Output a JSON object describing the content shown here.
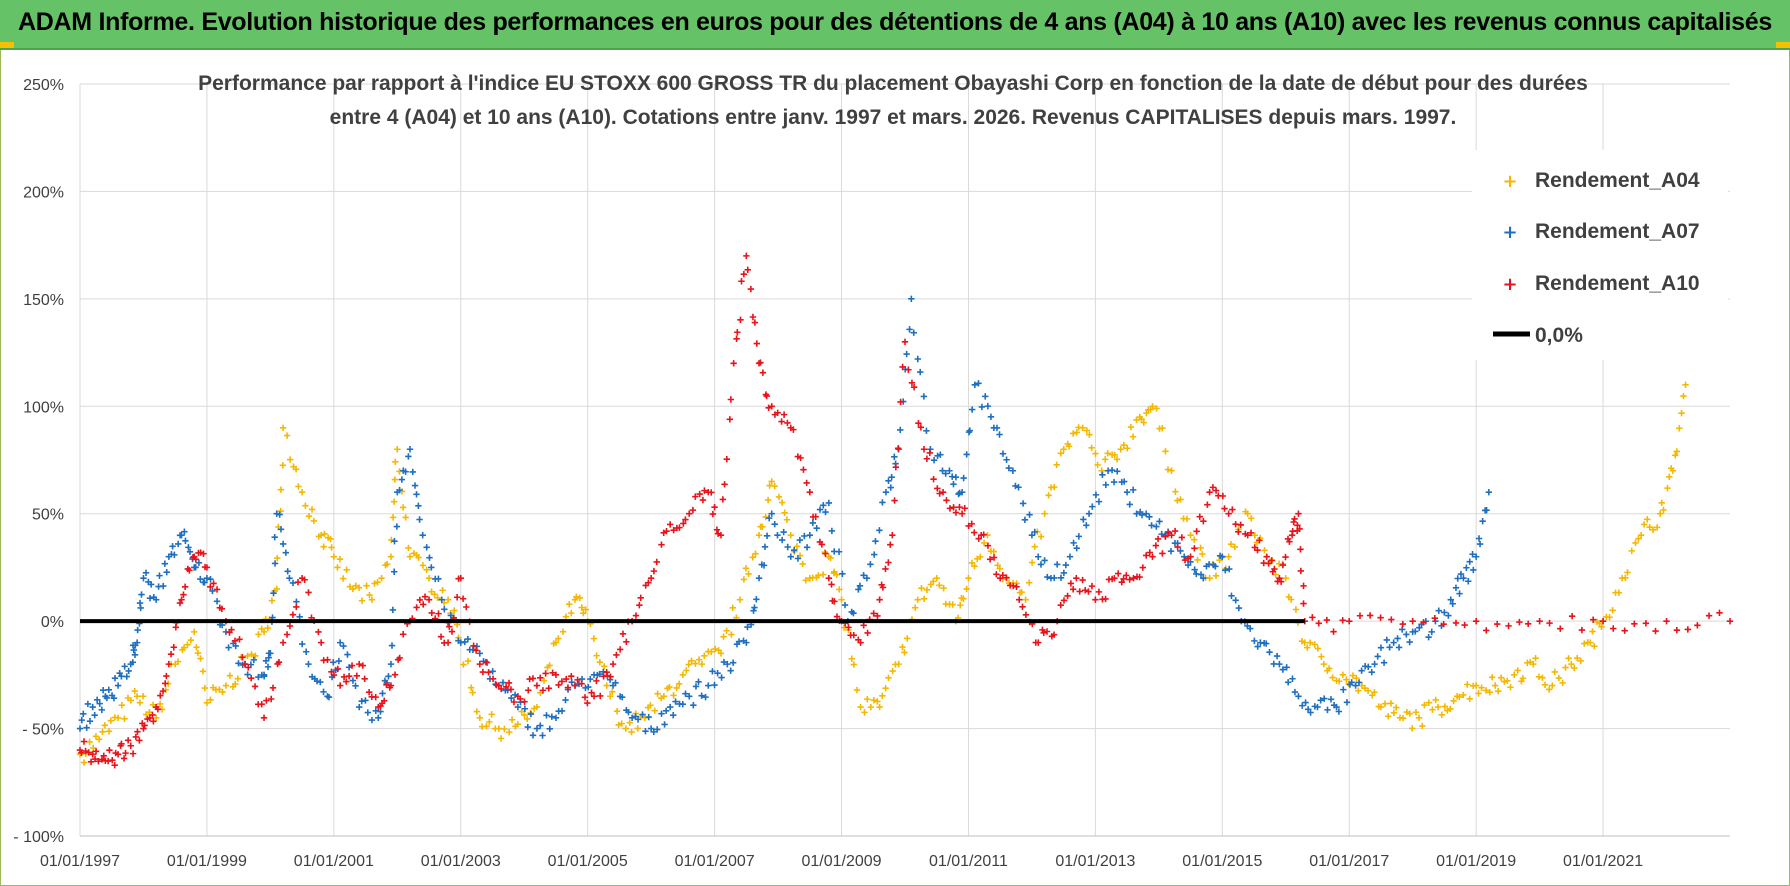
{
  "header": {
    "title": "ADAM Informe. Evolution historique des performances en euros pour des détentions de 4 ans (A04) à 10 ans (A10) avec les revenus connus capitalisés"
  },
  "colors": {
    "A04": "#f5b800",
    "A07": "#1f6fc1",
    "A10": "#e8131b",
    "zero": "#000000",
    "grid": "#d9d9d9",
    "banner": "#66c266"
  },
  "chart_data": {
    "type": "scatter",
    "title_lines": [
      "Performance par rapport à l'indice EU STOXX 600 GROSS TR  du placement Obayashi Corp en fonction de la date de début pour des durées",
      "entre 4 (A04) et 10 ans (A10).  Cotations entre janv. 1997 et mars. 2026.  Revenus CAPITALISES depuis mars. 1997."
    ],
    "xlabel": "",
    "ylabel": "",
    "x_range": [
      1997.0,
      2023.0
    ],
    "ylim": [
      -100,
      250
    ],
    "y_unit": "%",
    "y_ticks": [
      -100,
      -50,
      0,
      50,
      100,
      150,
      200,
      250
    ],
    "y_tick_labels": [
      "- 100%",
      "- 50%",
      "0%",
      "50%",
      "100%",
      "150%",
      "200%",
      "250%"
    ],
    "x_ticks": [
      1997,
      1999,
      2001,
      2003,
      2005,
      2007,
      2009,
      2011,
      2013,
      2015,
      2017,
      2019,
      2021
    ],
    "x_tick_labels": [
      "01/01/1997",
      "01/01/1999",
      "01/01/2001",
      "01/01/2003",
      "01/01/2005",
      "01/01/2007",
      "01/01/2009",
      "01/01/2011",
      "01/01/2013",
      "01/01/2015",
      "01/01/2017",
      "01/01/2019",
      "01/01/2021"
    ],
    "legend_position": "top-right",
    "series": [
      {
        "key": "A04",
        "name": "Rendement_A04",
        "marker": "+",
        "x": [
          1997.0,
          1997.3,
          1997.6,
          1997.9,
          1998.2,
          1998.5,
          1998.8,
          1999.0,
          1999.3,
          1999.6,
          1999.9,
          2000.1,
          2000.2,
          2000.5,
          2000.8,
          2001.0,
          2001.3,
          2001.6,
          2001.9,
          2002.0,
          2002.2,
          2002.5,
          2002.8,
          2003.0,
          2003.3,
          2003.6,
          2003.9,
          2004.2,
          2004.5,
          2004.8,
          2005.0,
          2005.3,
          2005.6,
          2005.9,
          2006.2,
          2006.5,
          2006.8,
          2007.1,
          2007.4,
          2007.7,
          2007.9,
          2008.2,
          2008.5,
          2008.8,
          2009.0,
          2009.3,
          2009.6,
          2009.9,
          2010.2,
          2010.5,
          2010.8,
          2011.0,
          2011.3,
          2011.6,
          2011.9,
          2012.2,
          2012.5,
          2012.8,
          2013.1,
          2013.4,
          2013.7,
          2013.9,
          2014.2,
          2014.5,
          2014.8,
          2015.1,
          2015.4,
          2015.7,
          2016.0,
          2016.3,
          2016.6,
          2016.9,
          2017.2,
          2017.5,
          2017.8,
          2018.1,
          2018.4,
          2018.7,
          2019.0,
          2019.3,
          2019.6,
          2019.9,
          2020.2,
          2020.5,
          2020.8,
          2021.0,
          2021.3,
          2021.6,
          2021.9,
          2022.1,
          2022.3
        ],
        "y": [
          -62,
          -55,
          -45,
          -35,
          -45,
          -20,
          -5,
          -38,
          -30,
          -20,
          -5,
          15,
          90,
          60,
          40,
          30,
          15,
          10,
          30,
          80,
          30,
          20,
          10,
          -10,
          -45,
          -50,
          -48,
          -40,
          -10,
          10,
          0,
          -30,
          -50,
          -45,
          -35,
          -25,
          -20,
          -15,
          10,
          40,
          65,
          40,
          20,
          30,
          10,
          -40,
          -40,
          -20,
          10,
          20,
          0,
          20,
          40,
          20,
          10,
          50,
          80,
          90,
          70,
          80,
          95,
          100,
          70,
          40,
          20,
          30,
          50,
          30,
          20,
          -10,
          -20,
          -25,
          -30,
          -40,
          -45,
          -45,
          -40,
          -35,
          -30,
          -30,
          -25,
          -20,
          -30,
          -20,
          -10,
          0,
          20,
          40,
          50,
          70,
          110
        ]
      },
      {
        "key": "A07",
        "name": "Rendement_A07",
        "marker": "+",
        "x": [
          1997.0,
          1997.2,
          1997.4,
          1997.6,
          1997.8,
          1997.9,
          1998.0,
          1998.2,
          1998.4,
          1998.6,
          1998.8,
          1999.0,
          1999.3,
          1999.6,
          1999.9,
          2000.0,
          2000.1,
          2000.3,
          2000.6,
          2000.9,
          2001.1,
          2001.4,
          2001.7,
          2001.9,
          2002.0,
          2002.2,
          2002.4,
          2002.7,
          2003.0,
          2003.3,
          2003.6,
          2003.9,
          2004.2,
          2004.5,
          2004.8,
          2005.1,
          2005.4,
          2005.7,
          2006.0,
          2006.3,
          2006.6,
          2006.9,
          2007.2,
          2007.5,
          2007.7,
          2007.9,
          2008.2,
          2008.5,
          2008.8,
          2009.1,
          2009.4,
          2009.7,
          2009.9,
          2010.1,
          2010.4,
          2010.7,
          2010.9,
          2011.1,
          2011.4,
          2011.7,
          2012.0,
          2012.3,
          2012.6,
          2012.9,
          2013.2,
          2013.5,
          2013.8,
          2014.1,
          2014.4,
          2014.7,
          2015.0,
          2015.3,
          2015.6,
          2015.9,
          2016.2,
          2016.5,
          2016.8,
          2017.1,
          2017.4,
          2017.7,
          2018.0,
          2018.3,
          2018.6,
          2018.8,
          2019.0,
          2019.2
        ],
        "y": [
          -50,
          -40,
          -35,
          -30,
          -20,
          -10,
          20,
          10,
          30,
          40,
          25,
          20,
          -5,
          -20,
          -25,
          -15,
          50,
          20,
          -20,
          -35,
          -10,
          -40,
          -45,
          -20,
          60,
          80,
          40,
          10,
          -10,
          -15,
          -30,
          -40,
          -50,
          -45,
          -30,
          -25,
          -30,
          -45,
          -50,
          -40,
          -35,
          -30,
          -20,
          -10,
          20,
          50,
          30,
          40,
          55,
          0,
          20,
          60,
          80,
          150,
          80,
          70,
          60,
          110,
          90,
          70,
          40,
          20,
          30,
          50,
          70,
          60,
          50,
          40,
          30,
          20,
          30,
          0,
          -10,
          -20,
          -35,
          -40,
          -40,
          -30,
          -20,
          -10,
          -5,
          -5,
          10,
          20,
          30,
          60
        ]
      },
      {
        "key": "A10",
        "name": "Rendement_A10",
        "marker": "+",
        "x": [
          1997.0,
          1997.2,
          1997.4,
          1997.6,
          1997.8,
          1998.0,
          1998.2,
          1998.4,
          1998.6,
          1998.8,
          1999.0,
          1999.3,
          1999.6,
          1999.9,
          2000.2,
          2000.5,
          2000.8,
          2001.1,
          2001.4,
          2001.7,
          2001.9,
          2002.2,
          2002.5,
          2002.8,
          2003.0,
          2003.3,
          2003.6,
          2003.9,
          2004.2,
          2004.5,
          2004.8,
          2005.1,
          2005.4,
          2005.7,
          2006.0,
          2006.3,
          2006.6,
          2006.9,
          2007.1,
          2007.3,
          2007.5,
          2007.7,
          2007.9,
          2008.2,
          2008.5,
          2008.8,
          2009.0,
          2009.3,
          2009.6,
          2009.8,
          2010.0,
          2010.3,
          2010.6,
          2010.9,
          2011.2,
          2011.5,
          2011.8,
          2012.1,
          2012.4,
          2012.7,
          2013.0,
          2013.3,
          2013.6,
          2013.9,
          2014.2,
          2014.5,
          2014.8,
          2015.1,
          2015.4,
          2015.7,
          2015.9,
          2016.1,
          2016.2,
          2016.3,
          2017.0,
          2018.0,
          2019.0,
          2020.0,
          2021.0,
          2022.0,
          2023.0
        ],
        "y": [
          -60,
          -62,
          -65,
          -62,
          -58,
          -50,
          -40,
          -20,
          10,
          30,
          25,
          0,
          -20,
          -45,
          -10,
          20,
          -10,
          -30,
          -20,
          -40,
          -30,
          0,
          10,
          -10,
          20,
          -20,
          -30,
          -35,
          -30,
          -25,
          -30,
          -35,
          -20,
          0,
          20,
          45,
          50,
          60,
          40,
          120,
          170,
          120,
          100,
          90,
          60,
          20,
          0,
          -10,
          10,
          40,
          130,
          80,
          60,
          50,
          40,
          20,
          10,
          -10,
          0,
          20,
          10,
          20,
          20,
          30,
          40,
          30,
          60,
          50,
          40,
          30,
          20,
          40,
          50,
          0,
          0,
          0,
          0,
          0,
          0,
          0,
          0
        ]
      }
    ],
    "reference_line": {
      "label": "0,0%",
      "y": 0
    }
  }
}
